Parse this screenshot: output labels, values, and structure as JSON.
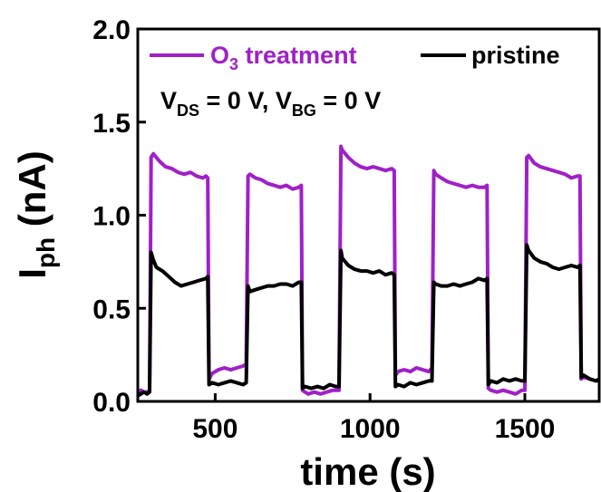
{
  "chart_data": {
    "type": "line",
    "title": "",
    "xlabel": "time (s)",
    "ylabel_main": "I",
    "ylabel_sub": "ph",
    "ylabel_unit": " (nA)",
    "xlim": [
      250,
      1740
    ],
    "ylim": [
      0.0,
      2.0
    ],
    "x_ticks": [
      500,
      1000,
      1500
    ],
    "y_ticks": [
      0.0,
      0.5,
      1.0,
      1.5,
      2.0
    ],
    "x_tick_labels": [
      "500",
      "1000",
      "1500"
    ],
    "y_tick_labels": [
      "0.0",
      "0.5",
      "1.0",
      "1.5",
      "2.0"
    ],
    "grid": false,
    "legend_position": "top",
    "annotation": {
      "v1": "V",
      "s1": "DS",
      "t1": " = 0 V, ",
      "v2": "V",
      "s2": "BG",
      "t2": " = 0 V"
    },
    "series": [
      {
        "name_main": "O",
        "name_sub": "3",
        "name_rest": " treatment",
        "color": "#a020c8",
        "x": [
          250,
          260,
          270,
          280,
          288,
          293,
          300,
          320,
          340,
          360,
          380,
          400,
          420,
          440,
          460,
          470,
          476,
          480,
          490,
          510,
          530,
          550,
          570,
          590,
          600,
          606,
          612,
          630,
          650,
          670,
          690,
          710,
          730,
          750,
          770,
          778,
          782,
          790,
          800,
          820,
          840,
          860,
          880,
          900,
          906,
          910,
          930,
          950,
          970,
          990,
          1010,
          1030,
          1050,
          1070,
          1078,
          1082,
          1090,
          1110,
          1130,
          1150,
          1170,
          1190,
          1200,
          1206,
          1212,
          1230,
          1250,
          1270,
          1290,
          1310,
          1330,
          1350,
          1370,
          1378,
          1382,
          1390,
          1410,
          1430,
          1450,
          1470,
          1490,
          1500,
          1506,
          1512,
          1530,
          1550,
          1570,
          1590,
          1610,
          1630,
          1650,
          1670,
          1678,
          1682,
          1690,
          1710,
          1730,
          1740
        ],
        "y": [
          0.04,
          0.06,
          0.05,
          0.05,
          0.06,
          1.31,
          1.33,
          1.29,
          1.26,
          1.25,
          1.23,
          1.22,
          1.23,
          1.21,
          1.2,
          1.21,
          1.2,
          0.12,
          0.15,
          0.17,
          0.18,
          0.17,
          0.18,
          0.19,
          0.2,
          1.21,
          1.22,
          1.2,
          1.19,
          1.17,
          1.16,
          1.15,
          1.16,
          1.14,
          1.15,
          1.16,
          0.06,
          0.05,
          0.04,
          0.05,
          0.04,
          0.05,
          0.06,
          0.06,
          1.37,
          1.35,
          1.31,
          1.28,
          1.26,
          1.25,
          1.26,
          1.25,
          1.24,
          1.25,
          1.24,
          0.14,
          0.16,
          0.17,
          0.16,
          0.18,
          0.17,
          0.16,
          0.18,
          1.24,
          1.22,
          1.2,
          1.18,
          1.17,
          1.16,
          1.15,
          1.16,
          1.15,
          1.15,
          1.16,
          0.07,
          0.06,
          0.05,
          0.06,
          0.05,
          0.04,
          0.06,
          0.06,
          1.31,
          1.32,
          1.28,
          1.26,
          1.25,
          1.24,
          1.23,
          1.22,
          1.2,
          1.21,
          1.21,
          0.12,
          0.13,
          0.12,
          0.11,
          0.12
        ]
      },
      {
        "name_main": "pristine",
        "name_sub": "",
        "name_rest": "",
        "color": "#000000",
        "x": [
          250,
          260,
          270,
          280,
          288,
          293,
          300,
          310,
          330,
          350,
          370,
          390,
          410,
          430,
          450,
          470,
          476,
          480,
          490,
          510,
          530,
          550,
          570,
          590,
          600,
          606,
          612,
          630,
          650,
          670,
          690,
          710,
          730,
          750,
          770,
          778,
          782,
          790,
          810,
          830,
          850,
          870,
          890,
          900,
          906,
          910,
          930,
          950,
          970,
          990,
          1010,
          1030,
          1050,
          1070,
          1078,
          1082,
          1090,
          1110,
          1130,
          1150,
          1170,
          1190,
          1200,
          1206,
          1212,
          1230,
          1250,
          1270,
          1290,
          1310,
          1330,
          1350,
          1370,
          1378,
          1382,
          1390,
          1410,
          1430,
          1450,
          1470,
          1490,
          1500,
          1506,
          1512,
          1530,
          1550,
          1570,
          1590,
          1610,
          1630,
          1650,
          1670,
          1678,
          1682,
          1690,
          1710,
          1730,
          1740
        ],
        "y": [
          0.03,
          0.04,
          0.05,
          0.04,
          0.05,
          0.8,
          0.76,
          0.72,
          0.7,
          0.67,
          0.64,
          0.62,
          0.63,
          0.64,
          0.65,
          0.66,
          0.67,
          0.09,
          0.1,
          0.09,
          0.1,
          0.11,
          0.1,
          0.09,
          0.1,
          0.62,
          0.59,
          0.6,
          0.61,
          0.62,
          0.62,
          0.63,
          0.63,
          0.62,
          0.64,
          0.64,
          0.07,
          0.08,
          0.07,
          0.08,
          0.07,
          0.09,
          0.08,
          0.08,
          0.81,
          0.77,
          0.73,
          0.71,
          0.7,
          0.7,
          0.69,
          0.7,
          0.68,
          0.69,
          0.68,
          0.08,
          0.09,
          0.08,
          0.1,
          0.09,
          0.1,
          0.11,
          0.11,
          0.64,
          0.63,
          0.62,
          0.62,
          0.63,
          0.62,
          0.63,
          0.64,
          0.66,
          0.65,
          0.66,
          0.09,
          0.11,
          0.1,
          0.12,
          0.11,
          0.12,
          0.11,
          0.11,
          0.84,
          0.81,
          0.77,
          0.75,
          0.74,
          0.72,
          0.71,
          0.72,
          0.73,
          0.72,
          0.73,
          0.13,
          0.14,
          0.12,
          0.11,
          0.12
        ]
      }
    ]
  }
}
